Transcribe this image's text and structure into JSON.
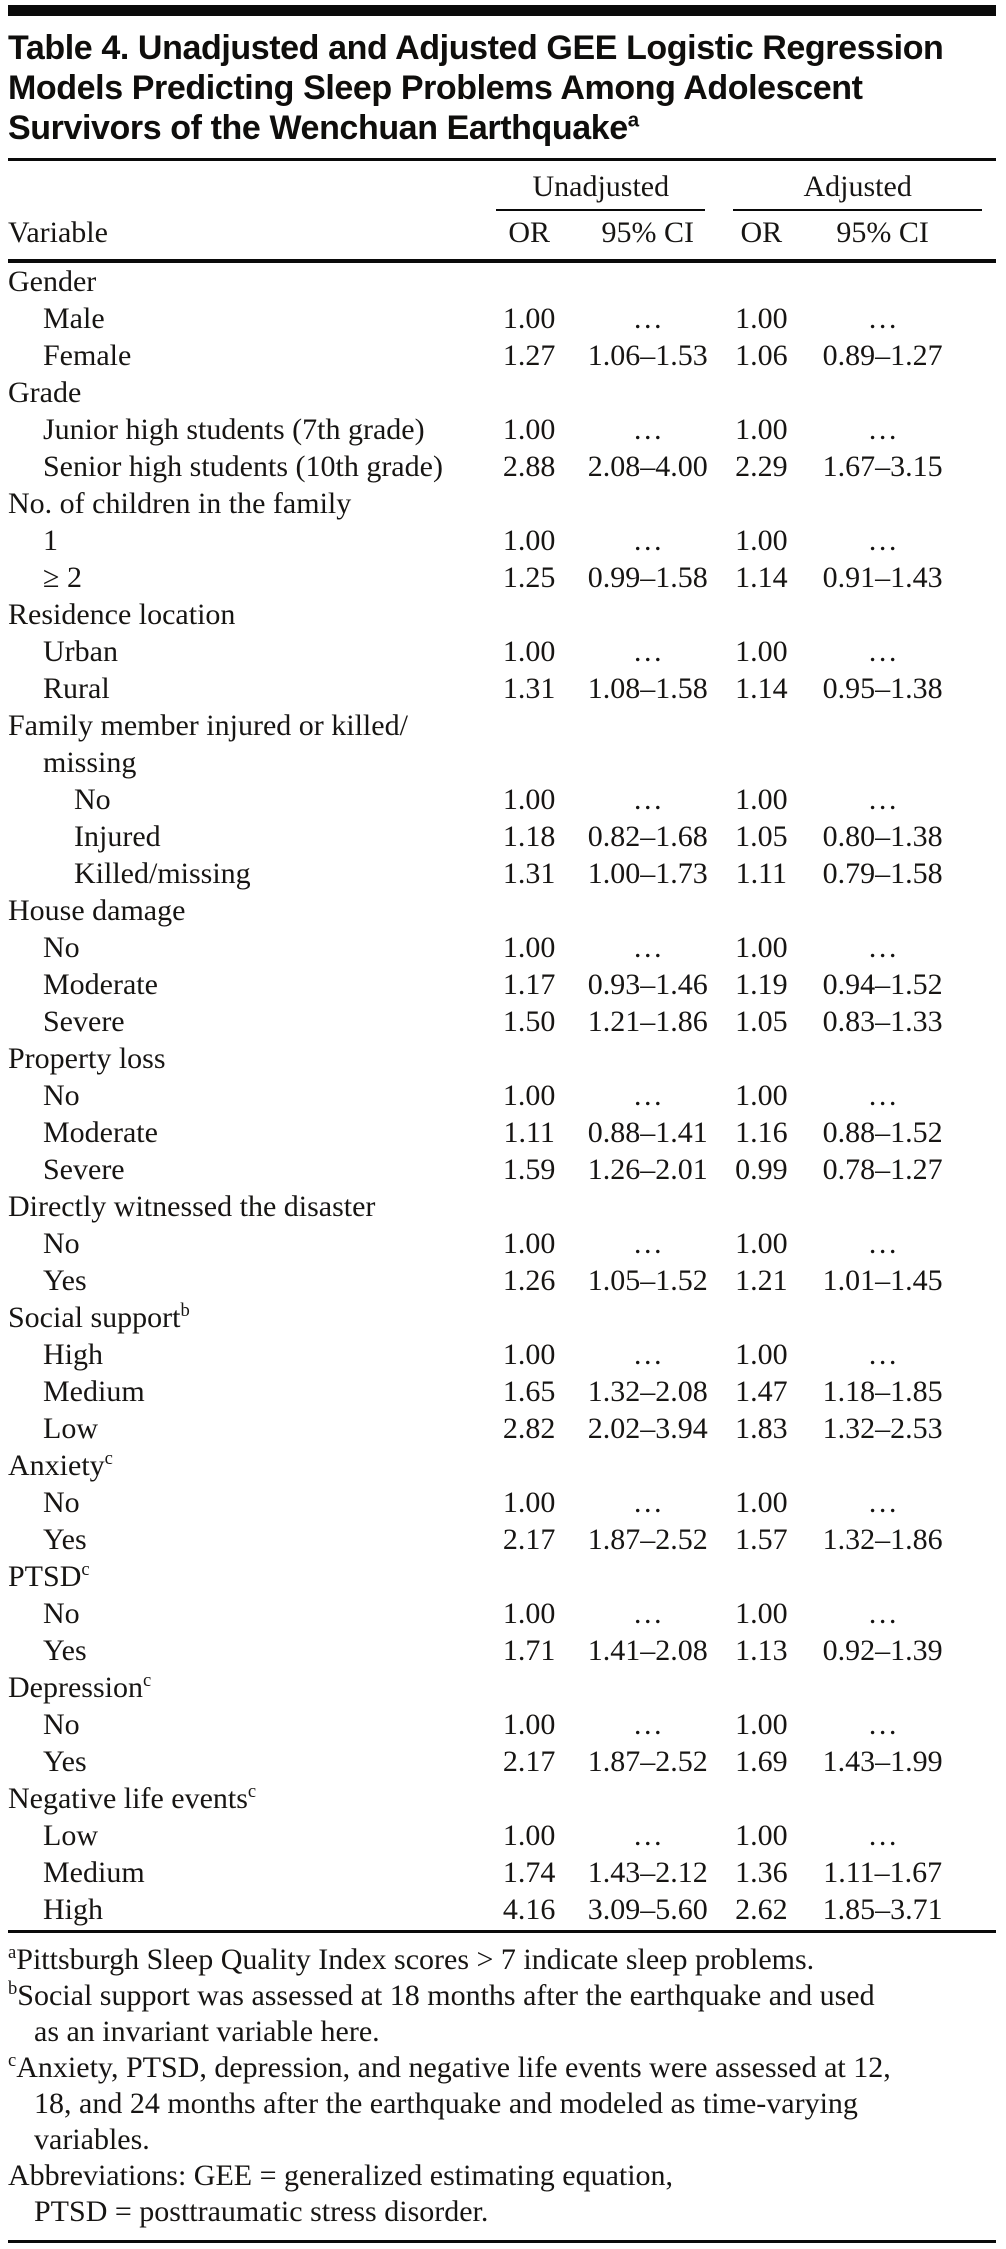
{
  "colors": {
    "background": "#ffffff",
    "text": "#171513",
    "rule": "#0a0a0a"
  },
  "title": {
    "lines": [
      "Table 4. Unadjusted and Adjusted GEE Logistic Regression",
      "Models Predicting Sleep Problems Among Adolescent",
      "Survivors of the Wenchuan Earthquake"
    ],
    "superscript": "a"
  },
  "table": {
    "group_headers": [
      {
        "label": "Unadjusted"
      },
      {
        "label": "Adjusted"
      }
    ],
    "columns": [
      "Variable",
      "OR",
      "95% CI",
      "OR",
      "95% CI"
    ],
    "rows": [
      {
        "label": "Gender",
        "indent": 0,
        "values": [
          "",
          "",
          "",
          ""
        ]
      },
      {
        "label": "Male",
        "indent": 1,
        "values": [
          "1.00",
          "…",
          "1.00",
          "…"
        ]
      },
      {
        "label": "Female",
        "indent": 1,
        "values": [
          "1.27",
          "1.06–1.53",
          "1.06",
          "0.89–1.27"
        ]
      },
      {
        "label": "Grade",
        "indent": 0,
        "values": [
          "",
          "",
          "",
          ""
        ]
      },
      {
        "label": "Junior high students (7th grade)",
        "indent": 1,
        "values": [
          "1.00",
          "…",
          "1.00",
          "…"
        ]
      },
      {
        "label": "Senior high students (10th grade)",
        "indent": 1,
        "values": [
          "2.88",
          "2.08–4.00",
          "2.29",
          "1.67–3.15"
        ]
      },
      {
        "label": "No. of children in the family",
        "indent": 0,
        "values": [
          "",
          "",
          "",
          ""
        ]
      },
      {
        "label": "1",
        "indent": 1,
        "values": [
          "1.00",
          "…",
          "1.00",
          "…"
        ]
      },
      {
        "label": "≥ 2",
        "indent": 1,
        "values": [
          "1.25",
          "0.99–1.58",
          "1.14",
          "0.91–1.43"
        ]
      },
      {
        "label": "Residence location",
        "indent": 0,
        "values": [
          "",
          "",
          "",
          ""
        ]
      },
      {
        "label": "Urban",
        "indent": 1,
        "values": [
          "1.00",
          "…",
          "1.00",
          "…"
        ]
      },
      {
        "label": "Rural",
        "indent": 1,
        "values": [
          "1.31",
          "1.08–1.58",
          "1.14",
          "0.95–1.38"
        ]
      },
      {
        "label": "Family member injured or killed/",
        "label2": "missing",
        "indent": 0,
        "values": [
          "",
          "",
          "",
          ""
        ]
      },
      {
        "label": "No",
        "indent": 2,
        "values": [
          "1.00",
          "…",
          "1.00",
          "…"
        ]
      },
      {
        "label": "Injured",
        "indent": 2,
        "values": [
          "1.18",
          "0.82–1.68",
          "1.05",
          "0.80–1.38"
        ]
      },
      {
        "label": "Killed/missing",
        "indent": 2,
        "values": [
          "1.31",
          "1.00–1.73",
          "1.11",
          "0.79–1.58"
        ]
      },
      {
        "label": "House damage",
        "indent": 0,
        "values": [
          "",
          "",
          "",
          ""
        ]
      },
      {
        "label": "No",
        "indent": 1,
        "values": [
          "1.00",
          "…",
          "1.00",
          "…"
        ]
      },
      {
        "label": "Moderate",
        "indent": 1,
        "values": [
          "1.17",
          "0.93–1.46",
          "1.19",
          "0.94–1.52"
        ]
      },
      {
        "label": "Severe",
        "indent": 1,
        "values": [
          "1.50",
          "1.21–1.86",
          "1.05",
          "0.83–1.33"
        ]
      },
      {
        "label": "Property loss",
        "indent": 0,
        "values": [
          "",
          "",
          "",
          ""
        ]
      },
      {
        "label": "No",
        "indent": 1,
        "values": [
          "1.00",
          "…",
          "1.00",
          "…"
        ]
      },
      {
        "label": "Moderate",
        "indent": 1,
        "values": [
          "1.11",
          "0.88–1.41",
          "1.16",
          "0.88–1.52"
        ]
      },
      {
        "label": "Severe",
        "indent": 1,
        "values": [
          "1.59",
          "1.26–2.01",
          "0.99",
          "0.78–1.27"
        ]
      },
      {
        "label": "Directly witnessed the disaster",
        "indent": 0,
        "values": [
          "",
          "",
          "",
          ""
        ]
      },
      {
        "label": "No",
        "indent": 1,
        "values": [
          "1.00",
          "…",
          "1.00",
          "…"
        ]
      },
      {
        "label": "Yes",
        "indent": 1,
        "values": [
          "1.26",
          "1.05–1.52",
          "1.21",
          "1.01–1.45"
        ]
      },
      {
        "label": "Social support",
        "sup": "b",
        "indent": 0,
        "values": [
          "",
          "",
          "",
          ""
        ]
      },
      {
        "label": "High",
        "indent": 1,
        "values": [
          "1.00",
          "…",
          "1.00",
          "…"
        ]
      },
      {
        "label": "Medium",
        "indent": 1,
        "values": [
          "1.65",
          "1.32–2.08",
          "1.47",
          "1.18–1.85"
        ]
      },
      {
        "label": "Low",
        "indent": 1,
        "values": [
          "2.82",
          "2.02–3.94",
          "1.83",
          "1.32–2.53"
        ]
      },
      {
        "label": "Anxiety",
        "sup": "c",
        "indent": 0,
        "values": [
          "",
          "",
          "",
          ""
        ]
      },
      {
        "label": "No",
        "indent": 1,
        "values": [
          "1.00",
          "…",
          "1.00",
          "…"
        ]
      },
      {
        "label": "Yes",
        "indent": 1,
        "values": [
          "2.17",
          "1.87–2.52",
          "1.57",
          "1.32–1.86"
        ]
      },
      {
        "label": "PTSD",
        "sup": "c",
        "indent": 0,
        "values": [
          "",
          "",
          "",
          ""
        ]
      },
      {
        "label": "No",
        "indent": 1,
        "values": [
          "1.00",
          "…",
          "1.00",
          "…"
        ]
      },
      {
        "label": "Yes",
        "indent": 1,
        "values": [
          "1.71",
          "1.41–2.08",
          "1.13",
          "0.92–1.39"
        ]
      },
      {
        "label": "Depression",
        "sup": "c",
        "indent": 0,
        "values": [
          "",
          "",
          "",
          ""
        ]
      },
      {
        "label": "No",
        "indent": 1,
        "values": [
          "1.00",
          "…",
          "1.00",
          "…"
        ]
      },
      {
        "label": "Yes",
        "indent": 1,
        "values": [
          "2.17",
          "1.87–2.52",
          "1.69",
          "1.43–1.99"
        ]
      },
      {
        "label": "Negative life events",
        "sup": "c",
        "indent": 0,
        "values": [
          "",
          "",
          "",
          ""
        ]
      },
      {
        "label": "Low",
        "indent": 1,
        "values": [
          "1.00",
          "…",
          "1.00",
          "…"
        ]
      },
      {
        "label": "Medium",
        "indent": 1,
        "values": [
          "1.74",
          "1.43–2.12",
          "1.36",
          "1.11–1.67"
        ]
      },
      {
        "label": "High",
        "indent": 1,
        "values": [
          "4.16",
          "3.09–5.60",
          "2.62",
          "1.85–3.71"
        ]
      }
    ]
  },
  "footnotes": [
    {
      "marker": "a",
      "lines": [
        "Pittsburgh Sleep Quality Index scores > 7 indicate sleep problems."
      ]
    },
    {
      "marker": "b",
      "lines": [
        "Social support was assessed at 18 months after the earthquake and used",
        "as an invariant variable here."
      ]
    },
    {
      "marker": "c",
      "lines": [
        "Anxiety, PTSD, depression, and negative life events were assessed at 12,",
        "18, and 24 months after the earthquake and modeled as time-varying",
        "variables."
      ]
    },
    {
      "marker": "",
      "lines": [
        "Abbreviations: GEE = generalized estimating equation,",
        "PTSD = posttraumatic stress disorder."
      ]
    }
  ]
}
